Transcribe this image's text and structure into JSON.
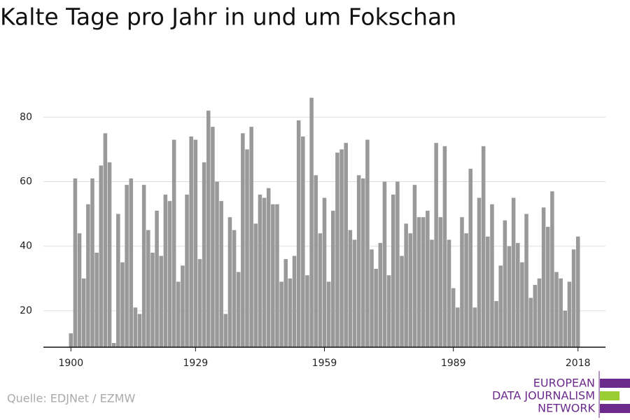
{
  "chart_data": {
    "type": "bar",
    "title": "Kalte Tage pro Jahr in und um Fokschan",
    "x": [
      1900,
      1901,
      1902,
      1903,
      1904,
      1905,
      1906,
      1907,
      1908,
      1909,
      1910,
      1911,
      1912,
      1913,
      1914,
      1915,
      1916,
      1917,
      1918,
      1919,
      1920,
      1921,
      1922,
      1923,
      1924,
      1925,
      1926,
      1927,
      1928,
      1929,
      1930,
      1931,
      1932,
      1933,
      1934,
      1935,
      1936,
      1937,
      1938,
      1939,
      1940,
      1941,
      1942,
      1943,
      1944,
      1945,
      1946,
      1947,
      1948,
      1949,
      1950,
      1951,
      1952,
      1953,
      1954,
      1955,
      1956,
      1957,
      1958,
      1959,
      1960,
      1961,
      1962,
      1963,
      1964,
      1965,
      1966,
      1967,
      1968,
      1969,
      1970,
      1971,
      1972,
      1973,
      1974,
      1975,
      1976,
      1977,
      1978,
      1979,
      1980,
      1981,
      1982,
      1983,
      1984,
      1985,
      1986,
      1987,
      1988,
      1989,
      1990,
      1991,
      1992,
      1993,
      1994,
      1995,
      1996,
      1997,
      1998,
      1999,
      2000,
      2001,
      2002,
      2003,
      2004,
      2005,
      2006,
      2007,
      2008,
      2009,
      2010,
      2011,
      2012,
      2013,
      2014,
      2015,
      2016,
      2017,
      2018
    ],
    "values": [
      13,
      61,
      44,
      30,
      53,
      61,
      38,
      65,
      75,
      66,
      10,
      50,
      35,
      59,
      61,
      21,
      19,
      59,
      45,
      38,
      51,
      37,
      56,
      54,
      73,
      29,
      34,
      56,
      74,
      73,
      36,
      66,
      82,
      77,
      60,
      54,
      19,
      49,
      45,
      32,
      75,
      70,
      77,
      47,
      56,
      55,
      58,
      53,
      53,
      29,
      36,
      30,
      37,
      79,
      74,
      31,
      86,
      62,
      44,
      55,
      29,
      51,
      69,
      70,
      72,
      45,
      42,
      62,
      61,
      73,
      39,
      33,
      41,
      60,
      31,
      56,
      60,
      37,
      47,
      44,
      59,
      49,
      49,
      51,
      42,
      72,
      49,
      71,
      42,
      27,
      21,
      49,
      44,
      64,
      21,
      55,
      71,
      43,
      53,
      23,
      34,
      48,
      40,
      55,
      41,
      35,
      50,
      24,
      28,
      30,
      52,
      46,
      57,
      32,
      30,
      20,
      29,
      39,
      43
    ],
    "color": "#999999",
    "xlim": [
      1893.6,
      2024.4
    ],
    "xticks": [
      1900,
      1929,
      1959,
      1989,
      2018
    ],
    "ylim": [
      8.7,
      92
    ],
    "yticks": [
      20,
      40,
      60,
      80
    ],
    "grid": true,
    "source": "Quelle: EDJNet / EZMW",
    "logo": [
      "EUROPEAN",
      "DATA JOURNALISM",
      "NETWORK"
    ]
  }
}
